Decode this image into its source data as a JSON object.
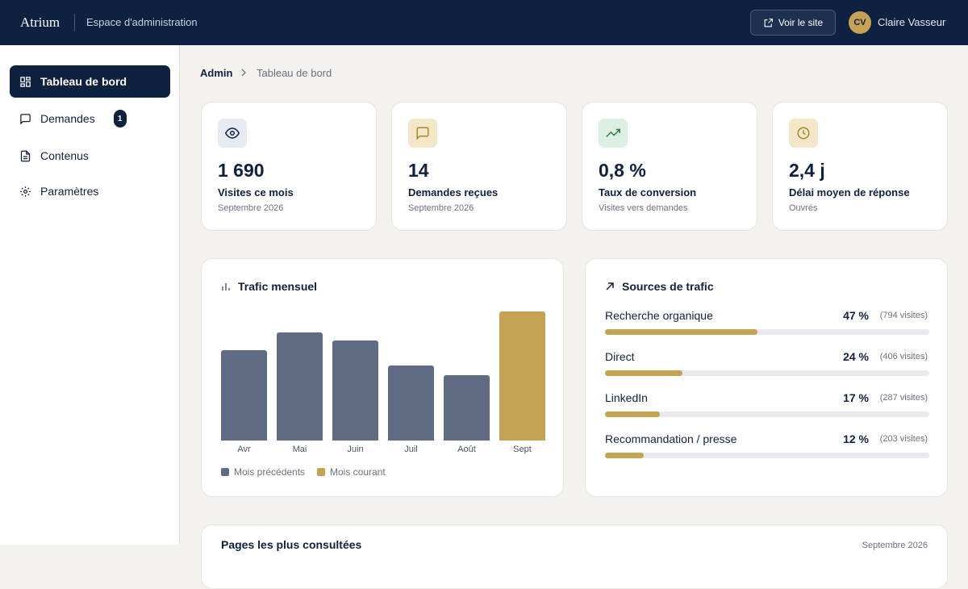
{
  "header": {
    "brand": "Atrium",
    "section": "Espace d'administration",
    "site_button": "Voir le site",
    "avatar": "CV",
    "user": "Claire Vasseur"
  },
  "nav": [
    {
      "label": "Tableau de bord"
    },
    {
      "label": "Demandes",
      "badge": "1"
    },
    {
      "label": "Contenus"
    },
    {
      "label": "Paramètres"
    }
  ],
  "breadcrumb": [
    "Admin",
    "Tableau de bord"
  ],
  "stats": [
    {
      "value": "1 690",
      "label": "Visites ce mois",
      "sub": "Septembre 2026"
    },
    {
      "value": "14",
      "label": "Demandes reçues",
      "sub": "Septembre 2026"
    },
    {
      "value": "0,8 %",
      "label": "Taux de conversion",
      "sub": "Visites vers demandes"
    },
    {
      "value": "2,4 j",
      "label": "Délai moyen de réponse",
      "sub": "Ouvrés"
    }
  ],
  "chart_data": [
    {
      "type": "bar",
      "title": "Trafic mensuel",
      "categories": [
        "Avr",
        "Mai",
        "Juin",
        "Juil",
        "Août",
        "Sept"
      ],
      "values": [
        1183,
        1415,
        1310,
        982,
        855,
        1690
      ],
      "colors": [
        "#5f6c84",
        "#5f6c84",
        "#5f6c84",
        "#5f6c84",
        "#5f6c84",
        "#c6a253"
      ],
      "ylim": [
        0,
        1690
      ],
      "legend": [
        {
          "name": "Mois précédents",
          "color": "#5f6c84"
        },
        {
          "name": "Mois courant",
          "color": "#c6a253"
        }
      ]
    },
    {
      "type": "hbar",
      "title": "Sources de trafic",
      "categories": [
        "Recherche organique",
        "Direct",
        "LinkedIn",
        "Recommandation / presse"
      ],
      "values": [
        47,
        24,
        17,
        12
      ],
      "value_labels": [
        "47 %",
        "24 %",
        "17 %",
        "12 %"
      ],
      "count_labels": [
        "(794 visites)",
        "(406 visites)",
        "(287 visites)",
        "(203 visites)"
      ],
      "xlim": [
        0,
        100
      ],
      "color": "#c6a253"
    }
  ],
  "pages_card": {
    "title": "Pages les plus consultées",
    "period": "Septembre 2026"
  }
}
